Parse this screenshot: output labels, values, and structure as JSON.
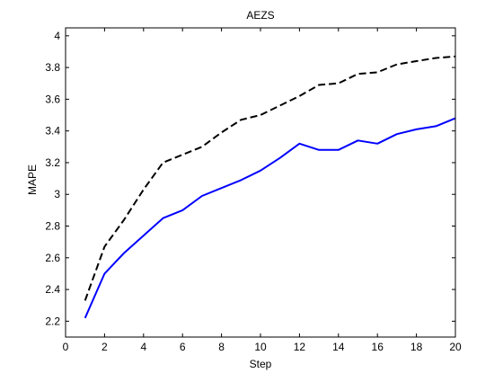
{
  "chart_data": {
    "type": "line",
    "title": "AEZS",
    "xlabel": "Step",
    "ylabel": "MAPE",
    "xlim": [
      0,
      20
    ],
    "ylim": [
      2.1,
      4.05
    ],
    "xticks": [
      0,
      2,
      4,
      6,
      8,
      10,
      12,
      14,
      16,
      18,
      20
    ],
    "yticks": [
      2.2,
      2.4,
      2.6,
      2.8,
      3,
      3.2,
      3.4,
      3.6,
      3.8,
      4
    ],
    "xtick_labels": [
      "0",
      "2",
      "4",
      "6",
      "8",
      "10",
      "12",
      "14",
      "16",
      "18",
      "20"
    ],
    "ytick_labels": [
      "2.2",
      "2.4",
      "2.6",
      "2.8",
      "3",
      "3.2",
      "3.4",
      "3.6",
      "3.8",
      "4"
    ],
    "grid": false,
    "legend": "none",
    "x": [
      1,
      2,
      3,
      4,
      5,
      6,
      7,
      8,
      9,
      10,
      11,
      12,
      13,
      14,
      15,
      16,
      17,
      18,
      19,
      20
    ],
    "series": [
      {
        "color": "#000000",
        "line_style": "dashed",
        "values": [
          2.33,
          2.67,
          2.84,
          3.03,
          3.2,
          3.25,
          3.3,
          3.39,
          3.47,
          3.5,
          3.56,
          3.62,
          3.69,
          3.7,
          3.76,
          3.77,
          3.82,
          3.84,
          3.86,
          3.87
        ]
      },
      {
        "color": "#0000FF",
        "line_style": "solid",
        "values": [
          2.22,
          2.5,
          2.63,
          2.74,
          2.85,
          2.9,
          2.99,
          3.04,
          3.09,
          3.15,
          3.23,
          3.32,
          3.28,
          3.28,
          3.34,
          3.32,
          3.38,
          3.41,
          3.43,
          3.48
        ]
      }
    ]
  }
}
